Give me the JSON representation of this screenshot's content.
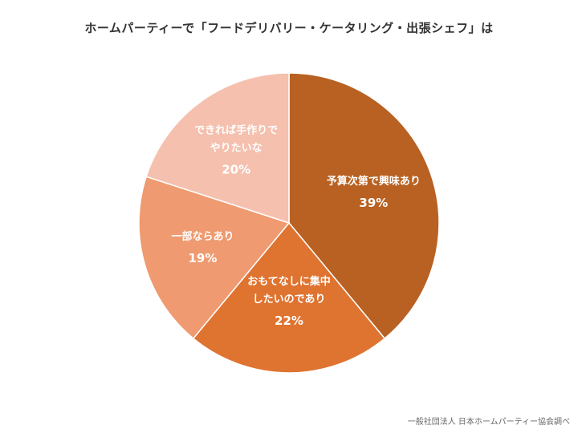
{
  "chart_data": {
    "type": "pie",
    "title": "ホームパーティーで「フードデリバリー・ケータリング・出張シェフ」は",
    "slices": [
      {
        "label_lines": [
          "予算次第で興味あり"
        ],
        "value": 39,
        "value_label": "39%",
        "color": "#b86122"
      },
      {
        "label_lines": [
          "おもてなしに集中",
          "したいのであり"
        ],
        "value": 22,
        "value_label": "22%",
        "color": "#df7330"
      },
      {
        "label_lines": [
          "一部ならあり"
        ],
        "value": 19,
        "value_label": "19%",
        "color": "#ef9a70"
      },
      {
        "label_lines": [
          "できれば手作りで",
          "やりたいな"
        ],
        "value": 20,
        "value_label": "20%",
        "color": "#f5c0ae"
      }
    ],
    "start_angle_deg": 0,
    "direction": "clockwise",
    "source": "一般社団法人 日本ホームパーティー協会調べ"
  }
}
